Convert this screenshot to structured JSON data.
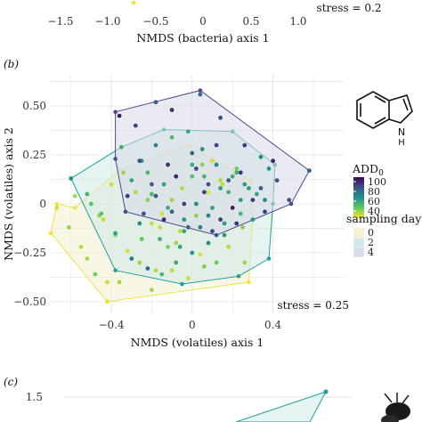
{
  "panel_a": {
    "xticks": [
      "−1.5",
      "−1.0",
      "−0.5",
      "0",
      "0.5",
      "1.0"
    ],
    "xlabel": "NMDS (bacteria) axis 1",
    "stress": "stress = 0.2"
  },
  "panel_b": {
    "letter": "(b)",
    "stress": "stress = 0.25",
    "legend": {
      "add_title": "ADD",
      "add_sub": "0",
      "add_ticks": [
        "100",
        "80",
        "60",
        "40"
      ],
      "day_title": "sampling day",
      "days": [
        "0",
        "2",
        "4"
      ]
    }
  },
  "panel_c": {
    "letter": "(c)",
    "ytick": "1.5"
  },
  "colors": {
    "day0": "#f0e442",
    "day2": "#21a19a",
    "day4": "#4b4a8c",
    "fill0": "#f3f1d2",
    "fill2": "#cfe9e6",
    "fill4": "#d8dbe8",
    "grid": "#e6e6e6"
  },
  "chart_data": {
    "type": "scatter",
    "title": "",
    "xlabel": "NMDS (volatiles) axis 1",
    "ylabel": "NMDS (volatiles) axis 2",
    "xlim": [
      -0.7,
      0.75
    ],
    "ylim": [
      -0.56,
      0.66
    ],
    "xticks": [
      -0.4,
      0,
      0.4
    ],
    "xtick_labels": [
      "−0.4",
      "0",
      "0.4"
    ],
    "yticks": [
      -0.5,
      -0.25,
      0,
      0.25,
      0.5
    ],
    "ytick_labels": [
      "−0.50",
      "−0.25",
      "0",
      "0.25",
      "0.50"
    ],
    "grid": true,
    "hulls": [
      {
        "day": "0",
        "points": [
          [
            -0.58,
            -0.02
          ],
          [
            -0.36,
            0.17
          ],
          [
            -0.02,
            0.3
          ],
          [
            0.29,
            0.12
          ],
          [
            0.3,
            -0.08
          ],
          [
            0.28,
            -0.4
          ],
          [
            -0.42,
            -0.5
          ],
          [
            -0.7,
            -0.15
          ],
          [
            -0.67,
            0.0
          ]
        ]
      },
      {
        "day": "2",
        "points": [
          [
            -0.6,
            0.13
          ],
          [
            -0.35,
            0.29
          ],
          [
            -0.14,
            0.38
          ],
          [
            0.2,
            0.37
          ],
          [
            0.41,
            0.2
          ],
          [
            0.4,
            0.0
          ],
          [
            0.38,
            -0.28
          ],
          [
            0.23,
            -0.37
          ],
          [
            -0.05,
            -0.41
          ],
          [
            -0.38,
            -0.34
          ]
        ]
      },
      {
        "day": "4",
        "points": [
          [
            -0.38,
            0.47
          ],
          [
            0.04,
            0.58
          ],
          [
            0.58,
            0.17
          ],
          [
            0.49,
            0.0
          ],
          [
            0.12,
            -0.16
          ],
          [
            -0.33,
            -0.04
          ],
          [
            -0.38,
            0.23
          ]
        ]
      }
    ],
    "series": [
      {
        "day": "0",
        "add": [
          40,
          45,
          42,
          50,
          38,
          44,
          47,
          52,
          41,
          39,
          46,
          43,
          55,
          48,
          40,
          42,
          37,
          49,
          44,
          53,
          41,
          46,
          39,
          45,
          43,
          50,
          42,
          47,
          38,
          44,
          51,
          40,
          46,
          43,
          48,
          41,
          45,
          39,
          52,
          44,
          47,
          42,
          40,
          49,
          43,
          46,
          41,
          45
        ],
        "x": [
          -0.67,
          -0.61,
          -0.55,
          -0.48,
          -0.42,
          -0.36,
          -0.3,
          -0.25,
          -0.2,
          -0.15,
          -0.1,
          -0.05,
          0.0,
          0.05,
          0.1,
          0.15,
          0.2,
          0.25,
          -0.58,
          -0.5,
          -0.44,
          -0.38,
          -0.32,
          -0.26,
          -0.18,
          -0.12,
          -0.06,
          0.02,
          0.08,
          0.14,
          0.22,
          -0.4,
          -0.34,
          -0.28,
          -0.22,
          -0.16,
          -0.08,
          0.04,
          0.12,
          -0.52,
          -0.46,
          -0.1,
          -0.02,
          0.06,
          0.18,
          0.26,
          -0.42,
          -0.2
        ],
        "y": [
          -0.02,
          -0.12,
          -0.22,
          -0.36,
          -0.5,
          -0.4,
          -0.28,
          -0.18,
          -0.1,
          -0.05,
          0.02,
          0.08,
          0.14,
          0.2,
          0.22,
          0.1,
          -0.02,
          -0.12,
          0.04,
          0.0,
          -0.08,
          -0.16,
          -0.24,
          -0.3,
          -0.34,
          -0.22,
          -0.14,
          -0.06,
          0.06,
          0.12,
          0.18,
          0.1,
          0.16,
          0.06,
          0.02,
          -0.12,
          -0.2,
          -0.26,
          -0.3,
          -0.28,
          -0.06,
          -0.34,
          -0.38,
          -0.32,
          -0.22,
          -0.3,
          -0.4,
          -0.44
        ]
      },
      {
        "day": "2",
        "add": [
          70,
          60,
          55,
          65,
          75,
          80,
          58,
          62,
          68,
          72,
          66,
          59,
          64,
          70,
          61,
          67,
          73,
          57,
          63,
          69,
          74,
          60,
          66,
          71,
          65,
          58,
          62,
          68,
          76,
          64,
          60,
          67,
          72,
          59,
          63,
          70,
          66,
          61,
          69,
          65,
          62,
          74,
          58,
          68,
          71,
          63,
          67,
          60
        ],
        "x": [
          -0.6,
          -0.52,
          -0.45,
          -0.38,
          -0.3,
          -0.22,
          -0.15,
          -0.08,
          0.0,
          0.08,
          0.16,
          0.24,
          0.32,
          0.38,
          -0.35,
          -0.25,
          -0.18,
          -0.1,
          -0.02,
          0.05,
          0.12,
          0.2,
          0.28,
          0.36,
          -0.3,
          -0.2,
          -0.12,
          -0.04,
          0.04,
          0.1,
          0.18,
          0.26,
          -0.26,
          -0.16,
          -0.06,
          0.02,
          0.14,
          0.22,
          0.3,
          -0.14,
          0.0,
          0.08,
          -0.22,
          0.16,
          0.34,
          -0.04,
          0.24,
          0.06
        ],
        "y": [
          0.13,
          0.05,
          -0.05,
          -0.15,
          -0.28,
          -0.33,
          -0.36,
          -0.3,
          -0.25,
          -0.2,
          -0.1,
          -0.05,
          0.05,
          0.18,
          0.29,
          0.22,
          0.3,
          0.34,
          0.37,
          0.28,
          0.2,
          0.14,
          0.08,
          0.02,
          0.12,
          0.05,
          -0.02,
          -0.08,
          -0.12,
          -0.02,
          0.06,
          0.1,
          -0.1,
          -0.18,
          -0.22,
          0.0,
          0.08,
          0.16,
          -0.08,
          0.1,
          0.2,
          -0.06,
          0.16,
          -0.16,
          0.24,
          -0.14,
          0.02,
          0.14
        ]
      },
      {
        "day": "4",
        "add": [
          100,
          90,
          85,
          95,
          80,
          88,
          92,
          97,
          83,
          86,
          91,
          94,
          89,
          82,
          96,
          87,
          93,
          84,
          98,
          90,
          85,
          92,
          88,
          95,
          81,
          89,
          94,
          87,
          91,
          86,
          99,
          83,
          90,
          92,
          85,
          88
        ],
        "x": [
          -0.36,
          -0.28,
          -0.18,
          -0.1,
          0.04,
          0.14,
          0.26,
          0.4,
          0.58,
          0.48,
          0.36,
          0.22,
          0.1,
          -0.02,
          -0.14,
          -0.24,
          -0.32,
          -0.2,
          -0.08,
          0.06,
          0.18,
          0.3,
          -0.26,
          -0.12,
          0.0,
          0.12,
          0.24,
          -0.18,
          -0.04,
          0.08,
          0.2,
          -0.1,
          0.02,
          0.14,
          0.34,
          0.42
        ],
        "y": [
          0.45,
          0.4,
          0.52,
          0.48,
          0.56,
          0.44,
          0.3,
          0.22,
          0.17,
          0.02,
          -0.04,
          -0.1,
          -0.14,
          -0.12,
          -0.08,
          -0.05,
          0.04,
          0.1,
          0.14,
          0.06,
          0.12,
          0.02,
          0.22,
          0.2,
          0.26,
          0.3,
          0.16,
          0.04,
          0.0,
          0.1,
          -0.02,
          -0.04,
          0.18,
          -0.08,
          0.08,
          0.12
        ]
      }
    ]
  }
}
